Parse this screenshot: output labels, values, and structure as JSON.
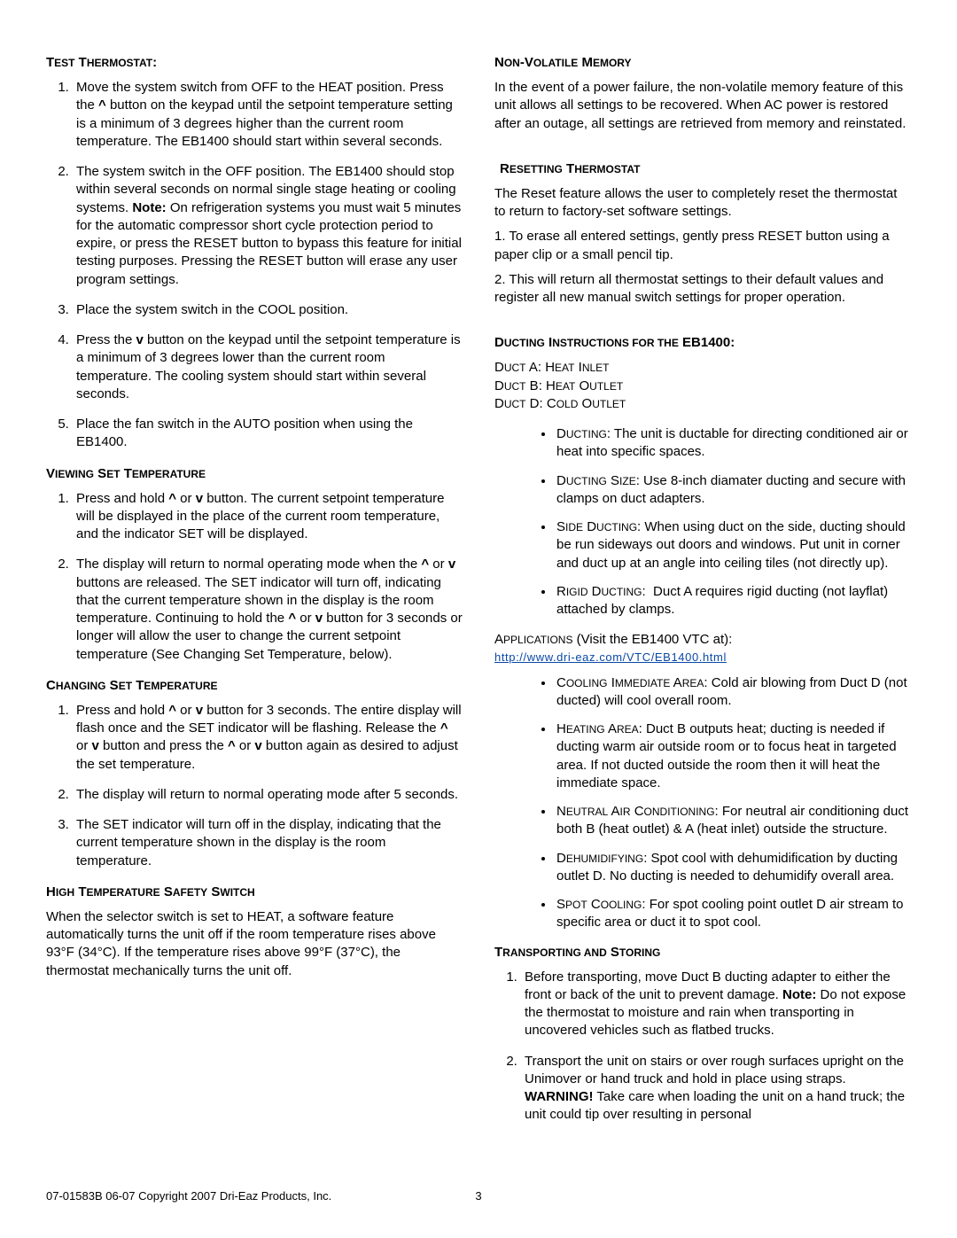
{
  "left": {
    "sec1": {
      "heading_html": "T<span style='font-size:12px'>EST</span> T<span style='font-size:12px'>HERMOSTAT</span>:",
      "items": [
        "Move the system switch from OFF to the HEAT position. Press the <span class='b'>^</span> button on the keypad until the setpoint temperature setting is a minimum of 3 degrees higher than the current room temperature. The EB1400 should start within several seconds.",
        "The system switch in the OFF position. The EB1400 should stop within several seconds on normal single stage heating or cooling systems. <span class='b'>Note:</span> On refrigeration systems you must wait 5 minutes for the automatic compressor short cycle protection period to expire, or press the RESET button to bypass this feature for initial testing purposes. Pressing the RESET button will erase any user program settings.",
        "Place the system switch in the COOL position.",
        "Press the <span class='b'>v</span> button on the keypad until the setpoint temperature is a minimum of 3 degrees lower than the current room temperature. The cooling system should start within several seconds.",
        "Place the fan switch in the AUTO position when using the EB1400."
      ]
    },
    "sec2": {
      "heading_html": "V<span style='font-size:12px'>IEWING</span> S<span style='font-size:12px'>ET</span> T<span style='font-size:12px'>EMPERATURE</span>",
      "items": [
        "Press and hold <span class='b'>^</span> or <span class='b'>v</span> button. The current setpoint temperature will be displayed in the place of the current room temperature, and the indicator SET will be displayed.",
        "The display will return to normal operating mode when the <span class='b'>^</span> or <span class='b'>v</span> buttons are released. The SET indicator will turn off, indicating that the current temperature shown in the display is the room temperature. Continuing to hold the <span class='b'>^</span> or <span class='b'>v</span> button for 3 seconds or longer will allow the user to change the current setpoint temperature (See Changing Set Temperature, below)."
      ]
    },
    "sec3": {
      "heading_html": "C<span style='font-size:12px'>HANGING</span> S<span style='font-size:12px'>ET</span> T<span style='font-size:12px'>EMPERATURE</span>",
      "items": [
        "Press and hold <span class='b'>^</span> or <span class='b'>v</span> button for 3 seconds. The entire display will flash once and the SET indicator will be flashing. Release the <span class='b'>^</span> or <span class='b'>v</span> button and press the <span class='b'>^</span> or <span class='b'>v</span> button again as desired to adjust the set temperature.",
        "The display will return to normal operating mode after 5 seconds.",
        "The SET indicator will turn off in the display, indicating that the current temperature shown in the display is the room temperature."
      ]
    },
    "sec4": {
      "heading_html": "H<span style='font-size:12px'>IGH</span> T<span style='font-size:12px'>EMPERATURE</span> S<span style='font-size:12px'>AFETY</span> S<span style='font-size:12px'>WITCH</span>",
      "para": "When the selector switch is set to HEAT, a software feature automatically turns the unit off if the room temperature rises above 93°F (34°C). If the temperature rises above 99°F (37°C), the thermostat mechanically turns the unit off."
    }
  },
  "right": {
    "sec1": {
      "heading_html": "N<span style='font-size:12px'>ON</span>-V<span style='font-size:12px'>OLATILE</span> M<span style='font-size:12px'>EMORY</span>",
      "para": "In the event of a power failure, the non-volatile memory feature of this unit allows all settings to be recovered. When AC power is restored after an outage, all settings are retrieved from memory and reinstated."
    },
    "sec2": {
      "heading_html": "R<span style='font-size:12px'>ESETTING</span> T<span style='font-size:12px'>HERMOSTAT</span>",
      "para": "The Reset feature allows the user to completely reset the thermostat to return to factory-set software settings.",
      "step1": "1. To erase all entered settings, gently press RESET button using a paper clip or a small pencil tip.",
      "step2": "2. This will return all thermostat settings to their default values and register all new manual switch settings for proper operation."
    },
    "sec3": {
      "heading_html": "D<span style='font-size:12px'>UCTING</span> I<span style='font-size:12px'>NSTRUCTIONS FOR THE</span> EB1400:",
      "ducts": [
        "D<span style='font-size:12px'>UCT</span> A: H<span style='font-size:12px'>EAT</span> I<span style='font-size:12px'>NLET</span>",
        "D<span style='font-size:12px'>UCT</span> B: H<span style='font-size:12px'>EAT</span> O<span style='font-size:12px'>UTLET</span>",
        "D<span style='font-size:12px'>UCT</span> D: C<span style='font-size:12px'>OLD</span> O<span style='font-size:12px'>UTLET</span>"
      ],
      "bullets": [
        "<span class='label-sc'>D<span style='font-size:12px'>UCTING</span></span>: The unit is ductable for directing conditioned air or heat into specific spaces.",
        "<span class='label-sc'>D<span style='font-size:12px'>UCTING</span> S<span style='font-size:12px'>IZE</span></span>: Use 8-inch diamater ducting and secure with clamps on duct adapters.",
        "<span class='label-sc'>S<span style='font-size:12px'>IDE</span> D<span style='font-size:12px'>UCTING</span></span>: When using duct on the side, ducting should be run sideways out doors and windows. Put unit in corner and duct up at an angle into ceiling tiles (not directly up).",
        "<span class='label-sc'>R<span style='font-size:12px'>IGID</span> D<span style='font-size:12px'>UCTING</span></span>:&nbsp; Duct A requires rigid ducting (not layflat) attached by clamps."
      ]
    },
    "apps": {
      "line1": "A<span style='font-size:12px'>PPLICATIONS</span> (Visit the EB1400 VTC at):",
      "link_text": "http://www.dri-eaz.com/VTC/EB1400.html",
      "bullets": [
        "<span class='label-sc'>C<span style='font-size:12px'>OOLING</span> I<span style='font-size:12px'>MMEDIATE</span> A<span style='font-size:12px'>REA</span></span>: Cold air blowing from Duct D (not ducted) will cool overall room.",
        "<span class='label-sc'>H<span style='font-size:12px'>EATING</span> A<span style='font-size:12px'>REA</span></span>: Duct B outputs heat; ducting is needed if ducting warm air outside room or to focus heat in targeted area. If not ducted outside the room then it will heat the immediate space.",
        "<span class='label-sc'>N<span style='font-size:12px'>EUTRAL</span> A<span style='font-size:12px'>IR</span> C<span style='font-size:12px'>ONDITIONING</span></span>: For neutral air conditioning duct both B (heat outlet) &amp; A (heat inlet) outside the structure.",
        "<span class='label-sc'>D<span style='font-size:12px'>EHUMIDIFYING</span></span>: Spot cool with dehumidification by ducting outlet D. No ducting is needed to dehumidify overall area.",
        "<span class='label-sc'>S<span style='font-size:12px'>POT</span> C<span style='font-size:12px'>OOLING</span></span>: For spot cooling point outlet D air stream to specific area or duct it to spot cool."
      ]
    },
    "sec5": {
      "heading_html": "T<span style='font-size:12px'>RANSPORTING AND</span> S<span style='font-size:12px'>TORING</span>",
      "items": [
        "Before transporting, move Duct B ducting adapter to either the front or back of the unit to prevent damage. <span class='b'>Note:</span> Do not expose the thermostat to moisture and rain when transporting in uncovered vehicles such as flatbed trucks.",
        "Transport the unit on stairs or over rough surfaces upright on the Unimover or hand truck and hold in place using straps. <span class='b'>WARNING!</span> Take care when loading the unit on a hand truck; the unit could tip over resulting in personal"
      ]
    }
  },
  "footer": "07-01583B  06-07   Copyright 2007 Dri-Eaz Products, Inc.",
  "page": "3"
}
